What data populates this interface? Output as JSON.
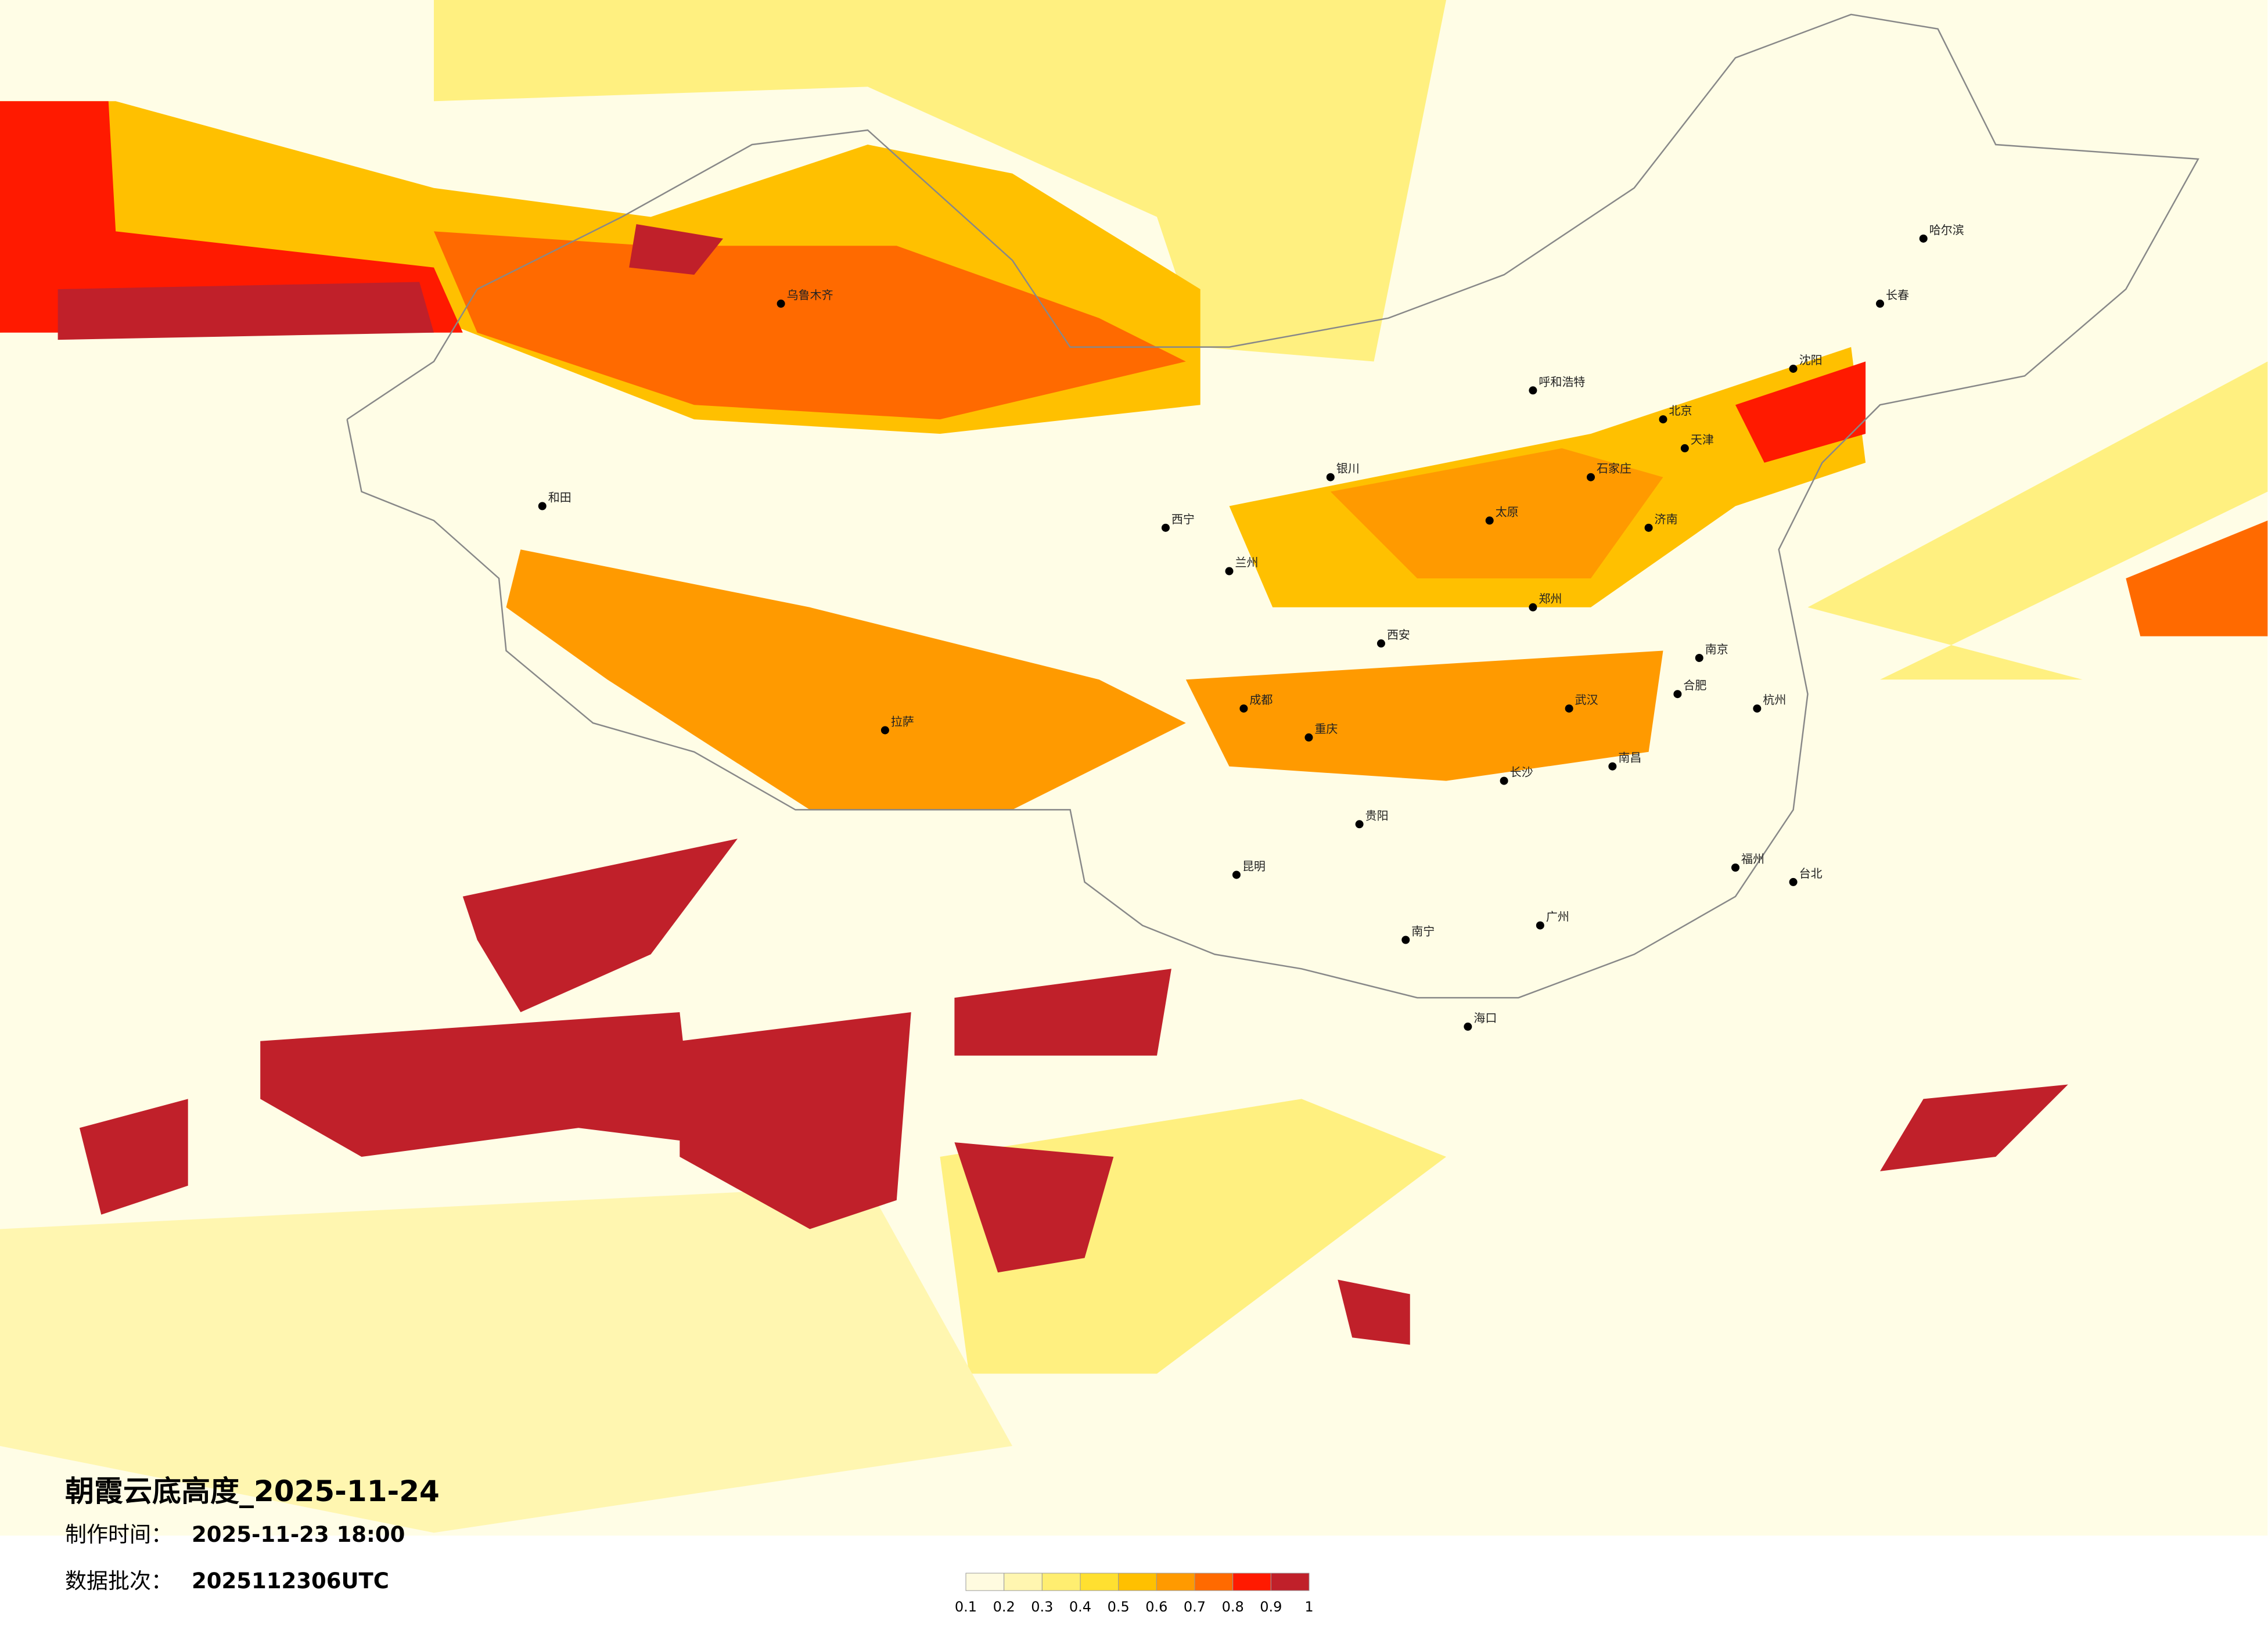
{
  "title": "朝霞云底高度_2025-11-24",
  "made_label": "制作时间：",
  "made_time": "2025-11-23 18:00",
  "batch_label": "数据批次：",
  "batch_value": "2025112306UTC",
  "legend": {
    "ticks": [
      0.1,
      0.2,
      0.3,
      0.4,
      0.5,
      0.6,
      0.7,
      0.8,
      0.9,
      1
    ],
    "colors": [
      "#fffbe0",
      "#fff6b0",
      "#ffee70",
      "#ffe030",
      "#ffc000",
      "#ff9a00",
      "#ff6a00",
      "#ff1a00",
      "#c0202a"
    ]
  },
  "cities": [
    "乌鲁木齐",
    "和田",
    "拉萨",
    "西宁",
    "兰州",
    "成都",
    "重庆",
    "昆明",
    "贵阳",
    "南宁",
    "广州",
    "海口",
    "长沙",
    "武汉",
    "南京",
    "郑州",
    "西安",
    "太原",
    "石家庄",
    "北京",
    "天津",
    "济南",
    "沈阳",
    "长春",
    "哈尔滨",
    "呼和浩特",
    "银川",
    "福州",
    "台北",
    "杭州",
    "南昌",
    "合肥"
  ]
}
